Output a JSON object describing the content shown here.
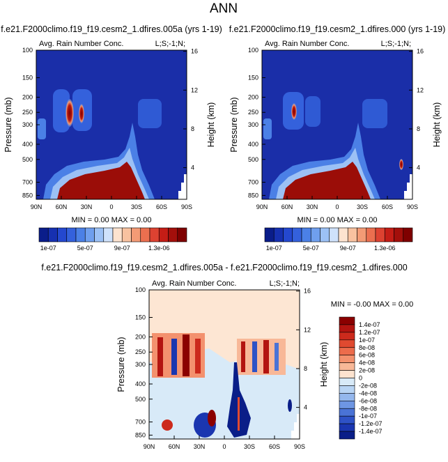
{
  "page_title": "ANN",
  "colors": {
    "plot_background": "#1a2ea8",
    "diff_background": "#fde6d3",
    "accent_red": "#8b0000"
  },
  "top_panels": [
    {
      "case_title": "f.e21.F2000climo.f19_f19.cesm2_1.dfires.005a (yrs 1-19)",
      "variable": "Avg. Rain Number Conc.",
      "region_tag": "L;S;-1;N;",
      "stats": "MIN =  0.00  MAX =  0.00",
      "y_left_label": "Pressure (mb)",
      "y_right_label": "Height (km)"
    },
    {
      "case_title": "f.e21.F2000climo.f19_f19.cesm2_1.dfires.000 (yrs 1-19)",
      "variable": "Avg. Rain Number Conc.",
      "region_tag": "L;S;-1;N;",
      "stats": "MIN =  0.00  MAX =  0.00",
      "y_left_label": "Pressure (mb)",
      "y_right_label": "Height (km)"
    }
  ],
  "diff_panel": {
    "title": "f.e21.F2000climo.f19_f19.cesm2_1.dfires.005a - f.e21.F2000climo.f19_f19.cesm2_1.dfires.000",
    "variable": "Avg. Rain Number Conc.",
    "region_tag": "L;S;-1;N;",
    "stats": "MIN = -0.00  MAX =  0.00",
    "y_left_label": "Pressure (mb)",
    "y_right_label": "Height (km)"
  },
  "chart_data": [
    {
      "type": "heatmap",
      "x_ticks": [
        "90N",
        "60N",
        "30N",
        "0",
        "30S",
        "60S",
        "90S"
      ],
      "y_ticks_pressure": [
        "100",
        "150",
        "200",
        "250",
        "300",
        "400",
        "500",
        "700",
        "850"
      ],
      "y_ticks_height": [
        "16",
        "12",
        "8",
        "4"
      ],
      "colorbar": {
        "orientation": "horizontal",
        "labels": [
          "1e-07",
          "5e-07",
          "9e-07",
          "1.3e-06"
        ],
        "colors": [
          "#0a1d8a",
          "#1630b0",
          "#2448cf",
          "#3461dc",
          "#4b80e6",
          "#6f9fee",
          "#9cc1f5",
          "#cfe2fb",
          "#fde3cf",
          "#f8c2a0",
          "#f39b75",
          "#eb6f4f",
          "#dd4231",
          "#c41d16",
          "#a30f0b",
          "#7f0000"
        ]
      }
    },
    {
      "type": "heatmap",
      "x_ticks": [
        "90N",
        "60N",
        "30N",
        "0",
        "30S",
        "60S",
        "90S"
      ],
      "y_ticks_pressure": [
        "100",
        "150",
        "200",
        "250",
        "300",
        "400",
        "500",
        "700",
        "850"
      ],
      "y_ticks_height": [
        "16",
        "12",
        "8",
        "4"
      ],
      "colorbar": {
        "orientation": "horizontal",
        "labels": [
          "1e-07",
          "5e-07",
          "9e-07",
          "1.3e-06"
        ],
        "colors": [
          "#0a1d8a",
          "#1630b0",
          "#2448cf",
          "#3461dc",
          "#4b80e6",
          "#6f9fee",
          "#9cc1f5",
          "#cfe2fb",
          "#fde3cf",
          "#f8c2a0",
          "#f39b75",
          "#eb6f4f",
          "#dd4231",
          "#c41d16",
          "#a30f0b",
          "#7f0000"
        ]
      }
    },
    {
      "type": "heatmap",
      "x_ticks": [
        "90N",
        "60N",
        "30N",
        "0",
        "30S",
        "60S",
        "90S"
      ],
      "y_ticks_pressure": [
        "100",
        "150",
        "200",
        "250",
        "300",
        "400",
        "500",
        "700",
        "850"
      ],
      "y_ticks_height": [
        "16",
        "12",
        "8",
        "4"
      ],
      "colorbar": {
        "orientation": "vertical",
        "labels": [
          "1.4e-07",
          "1.2e-07",
          "1e-07",
          "8e-08",
          "6e-08",
          "4e-08",
          "2e-08",
          "0",
          "-2e-08",
          "-4e-08",
          "-6e-08",
          "-8e-08",
          "-1e-07",
          "-1.2e-07",
          "-1.4e-07"
        ],
        "colors": [
          "#8b0000",
          "#b31410",
          "#cc2a1c",
          "#e04a30",
          "#ec6c4c",
          "#f3916e",
          "#f8b898",
          "#fde3cf",
          "#d8eaf8",
          "#b8d4f4",
          "#94b7ed",
          "#6e96e3",
          "#4a73d6",
          "#2e52c6",
          "#1a36b0",
          "#0a1e88"
        ]
      }
    }
  ]
}
